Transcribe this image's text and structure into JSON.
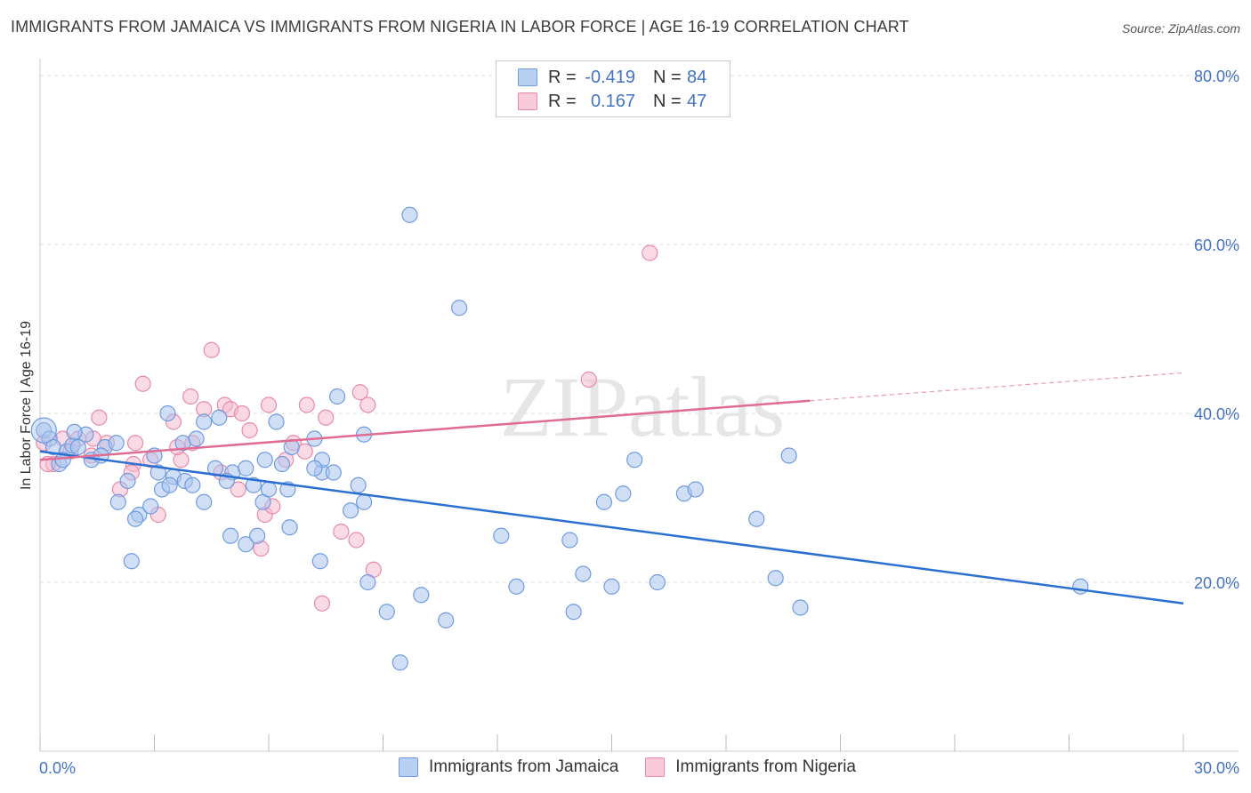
{
  "title": "IMMIGRANTS FROM JAMAICA VS IMMIGRANTS FROM NIGERIA IN LABOR FORCE | AGE 16-19 CORRELATION CHART",
  "source": "Source: ZipAtlas.com",
  "watermark": "ZIPatlas",
  "legend": {
    "series": [
      {
        "r_label": "R =",
        "r_value": "-0.419",
        "n_label": "N =",
        "n_value": "84"
      },
      {
        "r_label": "R =",
        "r_value": "0.167",
        "n_label": "N =",
        "n_value": "47"
      }
    ]
  },
  "bottom_legend": [
    "Immigrants from Jamaica",
    "Immigrants from Nigeria"
  ],
  "colors": {
    "jamaica_fill": "#a9c4ee",
    "jamaica_stroke": "#6f9be0",
    "jamaica_line": "#2b6fd1",
    "nigeria_fill": "#f5bccd",
    "nigeria_stroke": "#e98aa8",
    "nigeria_line": "#e06c94",
    "tick_text": "#4472c4",
    "grid": "#dddddd"
  },
  "chart_data": {
    "type": "scatter",
    "title": "IMMIGRANTS FROM JAMAICA VS IMMIGRANTS FROM NIGERIA IN LABOR FORCE | AGE 16-19 CORRELATION CHART",
    "xlabel": "",
    "ylabel": "In Labor Force | Age 16-19",
    "xlim": [
      0,
      30
    ],
    "ylim": [
      0,
      82
    ],
    "x_tick_labels": [
      "0.0%",
      "30.0%"
    ],
    "y_ticks": [
      20,
      40,
      60,
      80
    ],
    "y_tick_labels": [
      "20.0%",
      "40.0%",
      "60.0%",
      "80.0%"
    ],
    "grid": "horizontal dashed",
    "legend_position": "top-center",
    "series": [
      {
        "name": "Immigrants from Jamaica",
        "trend": {
          "x": [
            0,
            30
          ],
          "y": [
            35.5,
            17.5
          ]
        },
        "points": [
          [
            0.1,
            38.0
          ],
          [
            0.25,
            37.0
          ],
          [
            0.35,
            36.0
          ],
          [
            0.5,
            34.0
          ],
          [
            0.7,
            35.5
          ],
          [
            0.85,
            36.2
          ],
          [
            1.2,
            37.5
          ],
          [
            0.9,
            37.8
          ],
          [
            1.35,
            34.5
          ],
          [
            1.7,
            36.0
          ],
          [
            2.0,
            36.5
          ],
          [
            2.3,
            32.0
          ],
          [
            2.05,
            29.5
          ],
          [
            2.6,
            28.0
          ],
          [
            2.5,
            27.5
          ],
          [
            3.0,
            35.0
          ],
          [
            3.2,
            31.0
          ],
          [
            3.5,
            32.5
          ],
          [
            3.4,
            31.5
          ],
          [
            3.8,
            32.0
          ],
          [
            3.75,
            36.5
          ],
          [
            3.35,
            40.0
          ],
          [
            4.1,
            37.0
          ],
          [
            4.0,
            31.5
          ],
          [
            4.3,
            29.5
          ],
          [
            4.3,
            39.0
          ],
          [
            4.6,
            33.5
          ],
          [
            4.7,
            39.5
          ],
          [
            5.05,
            33.0
          ],
          [
            5.4,
            33.5
          ],
          [
            5.6,
            31.5
          ],
          [
            5.0,
            25.5
          ],
          [
            5.4,
            24.5
          ],
          [
            5.7,
            25.5
          ],
          [
            5.85,
            29.5
          ],
          [
            5.9,
            34.5
          ],
          [
            6.2,
            39.0
          ],
          [
            6.35,
            34.0
          ],
          [
            6.5,
            31.0
          ],
          [
            6.55,
            26.5
          ],
          [
            7.2,
            37.0
          ],
          [
            6.6,
            36.0
          ],
          [
            7.4,
            33.0
          ],
          [
            7.4,
            34.5
          ],
          [
            7.7,
            33.0
          ],
          [
            7.2,
            33.5
          ],
          [
            7.35,
            22.5
          ],
          [
            7.8,
            42.0
          ],
          [
            8.15,
            28.5
          ],
          [
            8.5,
            37.5
          ],
          [
            8.35,
            31.5
          ],
          [
            8.5,
            29.5
          ],
          [
            8.6,
            20.0
          ],
          [
            9.1,
            16.5
          ],
          [
            9.45,
            10.5
          ],
          [
            9.7,
            63.5
          ],
          [
            10.0,
            18.5
          ],
          [
            10.65,
            15.5
          ],
          [
            11.0,
            52.5
          ],
          [
            12.1,
            25.5
          ],
          [
            12.5,
            19.5
          ],
          [
            13.9,
            25.0
          ],
          [
            14.0,
            16.5
          ],
          [
            14.25,
            21.0
          ],
          [
            14.8,
            29.5
          ],
          [
            15.0,
            19.5
          ],
          [
            15.3,
            30.5
          ],
          [
            15.6,
            34.5
          ],
          [
            16.2,
            20.0
          ],
          [
            16.9,
            30.5
          ],
          [
            17.2,
            31.0
          ],
          [
            18.8,
            27.5
          ],
          [
            19.3,
            20.5
          ],
          [
            19.65,
            35.0
          ],
          [
            19.95,
            17.0
          ],
          [
            27.3,
            19.5
          ],
          [
            2.4,
            22.5
          ],
          [
            1.0,
            36.0
          ],
          [
            1.6,
            35.0
          ],
          [
            2.9,
            29.0
          ],
          [
            6.0,
            31.0
          ],
          [
            4.9,
            32.0
          ],
          [
            0.6,
            34.5
          ],
          [
            3.1,
            33.0
          ]
        ]
      },
      {
        "name": "Immigrants from Nigeria",
        "trend": {
          "x": [
            0,
            20.2
          ],
          "y": [
            34.5,
            41.5
          ]
        },
        "trend_dashed": {
          "x": [
            20.2,
            30
          ],
          "y": [
            41.5,
            44.8
          ]
        },
        "points": [
          [
            0.1,
            36.5
          ],
          [
            0.35,
            34.0
          ],
          [
            0.8,
            35.5
          ],
          [
            1.0,
            37.0
          ],
          [
            1.35,
            35.0
          ],
          [
            1.55,
            39.5
          ],
          [
            1.75,
            36.5
          ],
          [
            2.1,
            31.0
          ],
          [
            2.45,
            34.0
          ],
          [
            2.5,
            36.5
          ],
          [
            2.7,
            43.5
          ],
          [
            2.9,
            34.5
          ],
          [
            3.1,
            28.0
          ],
          [
            3.5,
            39.0
          ],
          [
            3.7,
            34.5
          ],
          [
            3.95,
            42.0
          ],
          [
            4.0,
            36.5
          ],
          [
            4.3,
            40.5
          ],
          [
            4.5,
            47.5
          ],
          [
            4.75,
            33.0
          ],
          [
            4.85,
            41.0
          ],
          [
            5.0,
            40.5
          ],
          [
            5.2,
            31.0
          ],
          [
            5.5,
            38.0
          ],
          [
            5.8,
            24.0
          ],
          [
            5.9,
            28.0
          ],
          [
            6.0,
            41.0
          ],
          [
            6.1,
            29.0
          ],
          [
            6.45,
            34.5
          ],
          [
            6.65,
            36.5
          ],
          [
            6.95,
            35.5
          ],
          [
            7.0,
            41.0
          ],
          [
            7.4,
            17.5
          ],
          [
            7.5,
            39.5
          ],
          [
            7.9,
            26.0
          ],
          [
            8.3,
            25.0
          ],
          [
            8.4,
            42.5
          ],
          [
            8.6,
            41.0
          ],
          [
            8.75,
            21.5
          ],
          [
            14.4,
            44.0
          ],
          [
            16.0,
            59.0
          ],
          [
            1.4,
            37.0
          ],
          [
            2.4,
            33.0
          ],
          [
            3.6,
            36.0
          ],
          [
            0.2,
            34.0
          ],
          [
            5.3,
            40.0
          ],
          [
            0.6,
            37.0
          ]
        ]
      }
    ]
  }
}
